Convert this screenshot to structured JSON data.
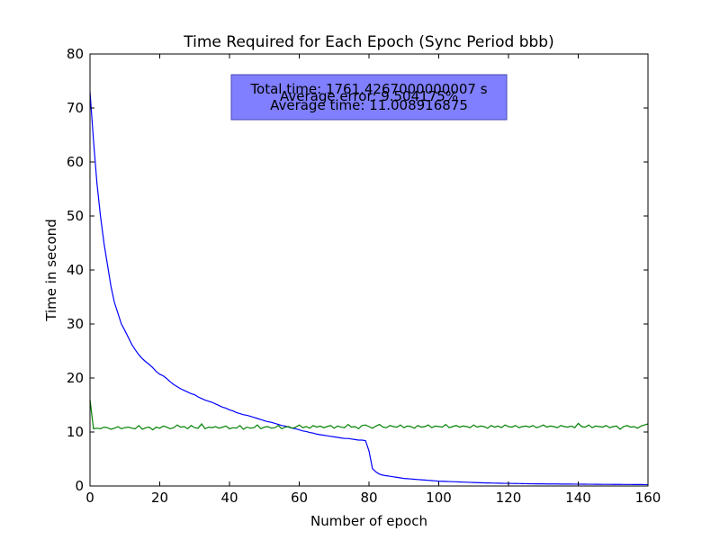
{
  "chart_data": {
    "type": "line",
    "title": "Time Required for Each Epoch (Sync Period bbb)",
    "xlabel": "Number of epoch",
    "ylabel": "Time in second",
    "xlim": [
      0,
      160
    ],
    "ylim": [
      0,
      80
    ],
    "xticks": [
      0,
      20,
      40,
      60,
      80,
      100,
      120,
      140,
      160
    ],
    "yticks": [
      0,
      10,
      20,
      30,
      40,
      50,
      60,
      70,
      80
    ],
    "grid": false,
    "annotation_box": {
      "lines": [
        "Total time: 1761.4267000000007 s",
        "Average error: 9.504175%",
        "Average time: 11.008916875"
      ],
      "color": "#7f7fff"
    },
    "series": [
      {
        "color": "#0000ff",
        "x": [
          0,
          1,
          2,
          3,
          4,
          5,
          6,
          7,
          8,
          9,
          10,
          11,
          12,
          13,
          14,
          15,
          16,
          17,
          18,
          19,
          20,
          21,
          22,
          23,
          24,
          25,
          26,
          27,
          28,
          29,
          30,
          31,
          32,
          33,
          34,
          35,
          36,
          37,
          38,
          39,
          40,
          41,
          42,
          43,
          44,
          45,
          46,
          47,
          48,
          49,
          50,
          51,
          52,
          53,
          54,
          55,
          56,
          57,
          58,
          59,
          60,
          61,
          62,
          63,
          64,
          65,
          66,
          67,
          68,
          69,
          70,
          71,
          72,
          73,
          74,
          75,
          76,
          77,
          78,
          79,
          80,
          81,
          82,
          83,
          84,
          85,
          86,
          87,
          88,
          89,
          90,
          91,
          92,
          93,
          94,
          95,
          96,
          97,
          98,
          99,
          100,
          101,
          102,
          103,
          104,
          105,
          106,
          107,
          108,
          109,
          110,
          111,
          112,
          113,
          114,
          115,
          116,
          117,
          118,
          119,
          120,
          121,
          122,
          123,
          124,
          125,
          126,
          127,
          128,
          129,
          130,
          131,
          132,
          133,
          134,
          135,
          136,
          137,
          138,
          139,
          140,
          141,
          142,
          143,
          144,
          145,
          146,
          147,
          148,
          149,
          150,
          151,
          152,
          153,
          154,
          155,
          156,
          157,
          158,
          159,
          160
        ],
        "y": [
          73,
          64,
          56,
          50,
          45,
          41,
          37,
          34,
          32,
          30,
          28.8,
          27.5,
          26.2,
          25.2,
          24.3,
          23.6,
          23,
          22.5,
          21.9,
          21.2,
          20.7,
          20.4,
          19.9,
          19.3,
          18.8,
          18.4,
          18,
          17.7,
          17.4,
          17.1,
          16.9,
          16.5,
          16.2,
          15.9,
          15.7,
          15.5,
          15.2,
          14.9,
          14.6,
          14.4,
          14.1,
          13.9,
          13.6,
          13.4,
          13.2,
          13.1,
          12.9,
          12.7,
          12.5,
          12.3,
          12.1,
          11.9,
          11.8,
          11.6,
          11.4,
          11.2,
          11.1,
          10.9,
          10.7,
          10.6,
          10.4,
          10.2,
          10.1,
          9.9,
          9.8,
          9.6,
          9.5,
          9.4,
          9.3,
          9.2,
          9.1,
          9.0,
          8.9,
          8.8,
          8.8,
          8.7,
          8.6,
          8.5,
          8.5,
          8.4,
          6.5,
          3.2,
          2.6,
          2.2,
          2.0,
          1.9,
          1.8,
          1.7,
          1.6,
          1.5,
          1.4,
          1.35,
          1.3,
          1.25,
          1.2,
          1.15,
          1.1,
          1.05,
          1.0,
          0.95,
          0.9,
          0.88,
          0.85,
          0.82,
          0.8,
          0.78,
          0.75,
          0.72,
          0.7,
          0.68,
          0.65,
          0.63,
          0.6,
          0.58,
          0.56,
          0.55,
          0.53,
          0.52,
          0.5,
          0.49,
          0.48,
          0.47,
          0.46,
          0.45,
          0.44,
          0.43,
          0.42,
          0.41,
          0.4,
          0.4,
          0.39,
          0.38,
          0.38,
          0.37,
          0.37,
          0.36,
          0.36,
          0.35,
          0.35,
          0.34,
          0.34,
          0.33,
          0.33,
          0.32,
          0.32,
          0.31,
          0.31,
          0.3,
          0.3,
          0.3,
          0.29,
          0.29,
          0.29,
          0.28,
          0.28,
          0.28,
          0.27,
          0.27,
          0.27,
          0.26,
          0.26
        ]
      },
      {
        "color": "#008000",
        "x": [
          0,
          1,
          2,
          3,
          4,
          5,
          6,
          7,
          8,
          9,
          10,
          11,
          12,
          13,
          14,
          15,
          16,
          17,
          18,
          19,
          20,
          21,
          22,
          23,
          24,
          25,
          26,
          27,
          28,
          29,
          30,
          31,
          32,
          33,
          34,
          35,
          36,
          37,
          38,
          39,
          40,
          41,
          42,
          43,
          44,
          45,
          46,
          47,
          48,
          49,
          50,
          51,
          52,
          53,
          54,
          55,
          56,
          57,
          58,
          59,
          60,
          61,
          62,
          63,
          64,
          65,
          66,
          67,
          68,
          69,
          70,
          71,
          72,
          73,
          74,
          75,
          76,
          77,
          78,
          79,
          80,
          81,
          82,
          83,
          84,
          85,
          86,
          87,
          88,
          89,
          90,
          91,
          92,
          93,
          94,
          95,
          96,
          97,
          98,
          99,
          100,
          101,
          102,
          103,
          104,
          105,
          106,
          107,
          108,
          109,
          110,
          111,
          112,
          113,
          114,
          115,
          116,
          117,
          118,
          119,
          120,
          121,
          122,
          123,
          124,
          125,
          126,
          127,
          128,
          129,
          130,
          131,
          132,
          133,
          134,
          135,
          136,
          137,
          138,
          139,
          140,
          141,
          142,
          143,
          144,
          145,
          146,
          147,
          148,
          149,
          150,
          151,
          152,
          153,
          154,
          155,
          156,
          157,
          158,
          159,
          160
        ],
        "y": [
          16,
          10.6,
          10.7,
          10.6,
          10.9,
          10.8,
          10.5,
          10.7,
          11.0,
          10.6,
          10.8,
          10.9,
          10.7,
          10.6,
          11.2,
          10.5,
          10.8,
          10.9,
          10.4,
          10.9,
          10.7,
          11.1,
          10.9,
          10.6,
          10.8,
          11.3,
          10.9,
          11.0,
          10.6,
          11.2,
          10.8,
          10.7,
          11.5,
          10.6,
          10.9,
          10.8,
          11.0,
          10.7,
          10.9,
          11.1,
          10.6,
          10.8,
          10.7,
          11.2,
          10.5,
          10.9,
          10.7,
          10.8,
          11.3,
          10.6,
          10.9,
          11.0,
          10.7,
          10.8,
          11.2,
          10.6,
          10.9,
          11.0,
          10.7,
          10.9,
          11.3,
          10.8,
          11.0,
          10.7,
          11.2,
          10.9,
          11.1,
          10.8,
          11.0,
          11.2,
          10.7,
          11.1,
          10.9,
          10.8,
          11.4,
          10.9,
          11.0,
          10.6,
          11.2,
          11.3,
          11.0,
          10.7,
          11.1,
          11.4,
          10.9,
          10.8,
          11.2,
          11.0,
          10.9,
          11.3,
          10.8,
          11.1,
          11.0,
          10.7,
          11.2,
          10.9,
          11.0,
          11.3,
          10.8,
          11.1,
          11.0,
          10.9,
          11.4,
          10.8,
          11.0,
          11.2,
          10.9,
          11.1,
          11.0,
          10.8,
          11.3,
          10.9,
          11.1,
          11.0,
          10.7,
          11.2,
          10.9,
          11.1,
          10.8,
          11.3,
          11.0,
          10.9,
          11.2,
          10.8,
          11.0,
          11.1,
          10.9,
          11.2,
          10.8,
          11.0,
          11.3,
          10.9,
          11.1,
          11.0,
          10.8,
          11.2,
          11.0,
          10.9,
          11.1,
          10.8,
          11.6,
          11.0,
          10.9,
          11.3,
          10.8,
          11.1,
          11.0,
          10.9,
          11.2,
          10.8,
          11.0,
          11.1,
          10.5,
          11.0,
          11.2,
          10.9,
          11.0,
          10.7,
          11.1,
          11.3,
          11.5
        ]
      }
    ]
  }
}
